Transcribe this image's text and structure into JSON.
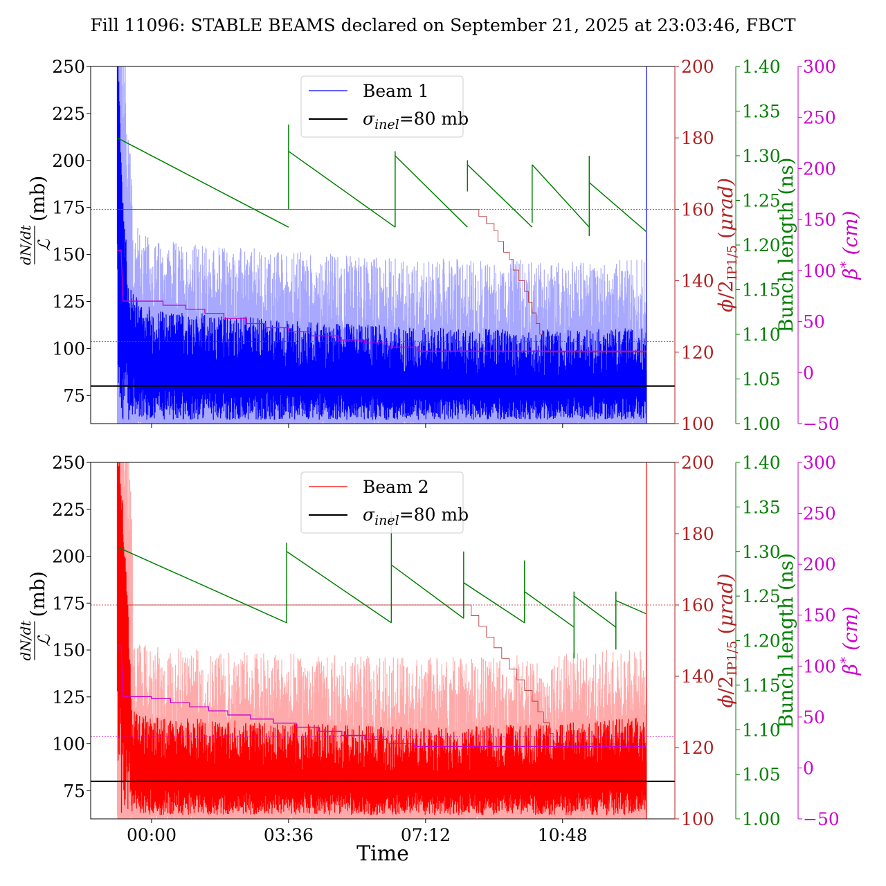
{
  "figure": {
    "title": "Fill 11096: STABLE BEAMS declared on September 21, 2025 at 23:03:46, FBCT",
    "xlabel": "Time"
  },
  "colors": {
    "beam1": "#0000ff",
    "beam1_light": "#a8a8ff",
    "beam2": "#ff0000",
    "beam2_light": "#ffaaaa",
    "crossing_angle": "#b22222",
    "bunch_length": "#008000",
    "beta_star": "#cc00cc",
    "sigma_line": "#000000"
  },
  "axes_labels": {
    "left_top": "(mb)",
    "right1_main": "/2",
    "right1_sub": "IP1/5",
    "right1_unit": "rad",
    "right2": "Bunch length (ns)",
    "right3": "(cm)"
  },
  "chart_data": [
    {
      "type": "line",
      "panel": "top",
      "x_unit": "hours since 00:00",
      "xlim": [
        -1.6,
        13.75
      ],
      "x_ticks": [
        0,
        3.6,
        7.2,
        10.8
      ],
      "x_tick_labels": [
        "00:00",
        "03:36",
        "07:12",
        "10:48"
      ],
      "ylim": [
        60,
        250
      ],
      "y_ticks": [
        75,
        100,
        125,
        150,
        175,
        200,
        225,
        250
      ],
      "legend": {
        "placement": "top-center",
        "entries": [
          "Beam 1",
          "σinel=80 mb"
        ]
      },
      "series": [
        {
          "name": "Beam 1",
          "axis": "dN/dt / L (mb)",
          "start": -0.9,
          "end": 13.0,
          "description_points": {
            "x": [
              -0.9,
              -0.8,
              -0.6,
              0.0,
              3.6,
              7.2,
              10.8,
              13.0
            ],
            "y": [
              250,
              180,
              110,
              98,
              92,
              88,
              87,
              88
            ]
          },
          "spike_end_y": 250
        },
        {
          "name": "σinel=80 mb",
          "axis": "dN/dt / L (mb)",
          "y_const": 80
        }
      ],
      "bunch_length": {
        "axis_range": [
          1.0,
          1.4
        ],
        "ticks": [
          1.0,
          1.05,
          1.1,
          1.15,
          1.2,
          1.25,
          1.3,
          1.35,
          1.4
        ],
        "segments": [
          [
            -0.9,
            1.32,
            3.6,
            1.22
          ],
          [
            3.6,
            1.305,
            6.4,
            1.22
          ],
          [
            6.4,
            1.3,
            8.3,
            1.22
          ],
          [
            8.3,
            1.29,
            10.0,
            1.22
          ],
          [
            10.0,
            1.29,
            11.5,
            1.22
          ],
          [
            11.5,
            1.27,
            13.0,
            1.215
          ]
        ],
        "spikes": [
          [
            3.6,
            1.24,
            1.335
          ],
          [
            6.4,
            1.22,
            1.305
          ],
          [
            8.3,
            1.26,
            1.295
          ],
          [
            10.0,
            1.225,
            1.29
          ],
          [
            11.5,
            1.21,
            1.3
          ]
        ]
      },
      "crossing_angle": {
        "axis_range": [
          100,
          200
        ],
        "ticks": [
          100,
          120,
          140,
          160,
          180,
          200
        ],
        "reference_lines": [
          160,
          123
        ],
        "steps": [
          [
            -0.9,
            160
          ],
          [
            8.6,
            160
          ],
          [
            8.6,
            158
          ],
          [
            8.8,
            156
          ],
          [
            9.0,
            154
          ],
          [
            9.1,
            151
          ],
          [
            9.25,
            148
          ],
          [
            9.4,
            146
          ],
          [
            9.5,
            143
          ],
          [
            9.65,
            140
          ],
          [
            9.8,
            137
          ],
          [
            9.9,
            134
          ],
          [
            10.0,
            131
          ],
          [
            10.1,
            128
          ],
          [
            10.2,
            125
          ],
          [
            10.3,
            122
          ],
          [
            10.35,
            120
          ],
          [
            13.0,
            120
          ]
        ]
      },
      "beta_star": {
        "axis_range": [
          -50,
          300
        ],
        "ticks": [
          -50,
          0,
          50,
          100,
          150,
          200,
          250,
          300
        ],
        "reference_lines": [
          30
        ],
        "steps": [
          [
            -0.9,
            120
          ],
          [
            -0.8,
            120
          ],
          [
            -0.75,
            70
          ],
          [
            0.3,
            70
          ],
          [
            0.3,
            66
          ],
          [
            0.9,
            66
          ],
          [
            0.9,
            62
          ],
          [
            1.4,
            62
          ],
          [
            1.4,
            58
          ],
          [
            1.9,
            58
          ],
          [
            1.9,
            53
          ],
          [
            2.5,
            53
          ],
          [
            2.5,
            48
          ],
          [
            3.0,
            48
          ],
          [
            3.0,
            44
          ],
          [
            3.6,
            44
          ],
          [
            3.6,
            40
          ],
          [
            4.2,
            40
          ],
          [
            4.2,
            36
          ],
          [
            4.9,
            36
          ],
          [
            4.9,
            32
          ],
          [
            5.6,
            32
          ],
          [
            5.6,
            29
          ],
          [
            6.2,
            29
          ],
          [
            6.2,
            25
          ],
          [
            7.0,
            25
          ],
          [
            7.0,
            21
          ],
          [
            13.0,
            21
          ]
        ]
      }
    },
    {
      "type": "line",
      "panel": "bottom",
      "x_unit": "hours since 00:00",
      "xlim": [
        -1.6,
        13.75
      ],
      "x_ticks": [
        0,
        3.6,
        7.2,
        10.8
      ],
      "x_tick_labels": [
        "00:00",
        "03:36",
        "07:12",
        "10:48"
      ],
      "ylim": [
        60,
        250
      ],
      "y_ticks": [
        75,
        100,
        125,
        150,
        175,
        200,
        225,
        250
      ],
      "legend": {
        "placement": "top-center",
        "entries": [
          "Beam 2",
          "σinel=80 mb"
        ]
      },
      "series": [
        {
          "name": "Beam 2",
          "axis": "dN/dt / L (mb)",
          "start": -0.9,
          "end": 13.0,
          "description_points": {
            "x": [
              -0.9,
              -0.7,
              -0.5,
              0.0,
              3.6,
              7.2,
              10.8,
              13.0
            ],
            "y": [
              250,
              190,
              95,
              92,
              88,
              86,
              88,
              92
            ]
          },
          "spike_end_y": 250
        },
        {
          "name": "σinel=80 mb",
          "axis": "dN/dt / L (mb)",
          "y_const": 80
        }
      ],
      "bunch_length": {
        "axis_range": [
          1.0,
          1.4
        ],
        "ticks": [
          1.0,
          1.05,
          1.1,
          1.15,
          1.2,
          1.25,
          1.3,
          1.35,
          1.4
        ],
        "segments": [
          [
            -0.9,
            1.305,
            3.55,
            1.22
          ],
          [
            3.55,
            1.3,
            6.3,
            1.22
          ],
          [
            6.3,
            1.285,
            8.2,
            1.225
          ],
          [
            8.2,
            1.265,
            9.8,
            1.22
          ],
          [
            9.8,
            1.255,
            11.1,
            1.215
          ],
          [
            11.1,
            1.25,
            12.2,
            1.215
          ],
          [
            12.2,
            1.245,
            13.0,
            1.23
          ]
        ],
        "spikes": [
          [
            3.55,
            1.22,
            1.31
          ],
          [
            6.3,
            1.22,
            1.345
          ],
          [
            8.2,
            1.225,
            1.3
          ],
          [
            9.8,
            1.22,
            1.29
          ],
          [
            11.1,
            1.18,
            1.255
          ],
          [
            12.2,
            1.19,
            1.255
          ]
        ]
      },
      "crossing_angle": {
        "axis_range": [
          100,
          200
        ],
        "ticks": [
          100,
          120,
          140,
          160,
          180,
          200
        ],
        "reference_lines": [
          160,
          123
        ],
        "steps": [
          [
            -0.9,
            160
          ],
          [
            8.4,
            160
          ],
          [
            8.4,
            157
          ],
          [
            8.6,
            154
          ],
          [
            8.8,
            151
          ],
          [
            9.0,
            148
          ],
          [
            9.2,
            145
          ],
          [
            9.4,
            142
          ],
          [
            9.6,
            139
          ],
          [
            9.8,
            136
          ],
          [
            10.0,
            133
          ],
          [
            10.15,
            130
          ],
          [
            10.3,
            127
          ],
          [
            10.45,
            124
          ],
          [
            10.55,
            121
          ],
          [
            13.0,
            121
          ]
        ]
      },
      "beta_star": {
        "axis_range": [
          -50,
          300
        ],
        "ticks": [
          -50,
          0,
          50,
          100,
          150,
          200,
          250,
          300
        ],
        "reference_lines": [
          30
        ],
        "steps": [
          [
            -0.9,
            120
          ],
          [
            -0.8,
            120
          ],
          [
            -0.75,
            70
          ],
          [
            0.0,
            70
          ],
          [
            0.0,
            68
          ],
          [
            0.5,
            68
          ],
          [
            0.5,
            64
          ],
          [
            1.0,
            64
          ],
          [
            1.0,
            60
          ],
          [
            1.5,
            60
          ],
          [
            1.5,
            56
          ],
          [
            2.0,
            56
          ],
          [
            2.0,
            52
          ],
          [
            2.6,
            52
          ],
          [
            2.6,
            48
          ],
          [
            3.2,
            48
          ],
          [
            3.2,
            44
          ],
          [
            3.8,
            44
          ],
          [
            3.8,
            40
          ],
          [
            4.4,
            40
          ],
          [
            4.4,
            36
          ],
          [
            5.0,
            36
          ],
          [
            5.0,
            32
          ],
          [
            5.6,
            32
          ],
          [
            5.6,
            28
          ],
          [
            6.2,
            28
          ],
          [
            6.2,
            24
          ],
          [
            6.9,
            24
          ],
          [
            6.9,
            21
          ],
          [
            13.0,
            21
          ]
        ]
      }
    }
  ]
}
